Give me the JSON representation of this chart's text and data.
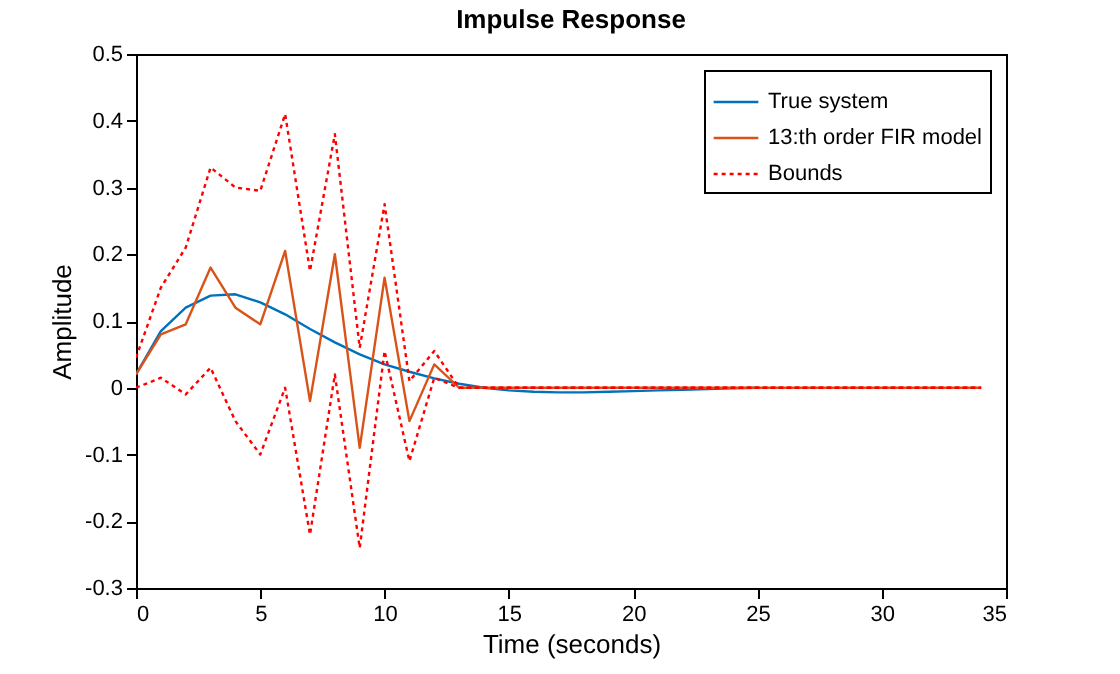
{
  "chart_data": {
    "type": "line",
    "title": "Impulse Response",
    "xlabel": "Time (seconds)",
    "ylabel": "Amplitude",
    "xlim": [
      0,
      35
    ],
    "xticks": [
      0,
      5,
      10,
      15,
      20,
      25,
      30,
      35
    ],
    "ylim": [
      -0.3,
      0.5
    ],
    "yticks": [
      -0.3,
      -0.2,
      -0.1,
      0,
      0.1,
      0.2,
      0.3,
      0.4,
      0.5
    ],
    "legend": "top right",
    "grid": false,
    "series": [
      {
        "name": "True system",
        "color": "#0072bd",
        "line_style": "solid",
        "x": [
          0,
          1,
          2,
          3,
          4,
          5,
          6,
          7,
          8,
          9,
          10,
          11,
          12,
          13,
          14,
          15,
          16,
          17,
          18,
          19,
          20,
          21,
          22,
          23,
          24,
          25
        ],
        "values": [
          0.02,
          0.085,
          0.12,
          0.138,
          0.14,
          0.128,
          0.11,
          0.088,
          0.068,
          0.05,
          0.035,
          0.024,
          0.014,
          0.006,
          0,
          -0.004,
          -0.006,
          -0.007,
          -0.007,
          -0.006,
          -0.005,
          -0.004,
          -0.003,
          -0.002,
          -0.001,
          0
        ]
      },
      {
        "name": "13:th order FIR model",
        "color": "#d95319",
        "line_style": "solid",
        "x": [
          0,
          1,
          2,
          3,
          4,
          5,
          6,
          7,
          8,
          9,
          10,
          11,
          12,
          13,
          14,
          20,
          25,
          30,
          34
        ],
        "values": [
          0.02,
          0.08,
          0.095,
          0.18,
          0.12,
          0.095,
          0.205,
          -0.02,
          0.2,
          -0.09,
          0.165,
          -0.05,
          0.035,
          0,
          0,
          0,
          0,
          0,
          0
        ]
      },
      {
        "name": "Bounds",
        "color": "#ff0000",
        "line_style": "dotted",
        "x": [
          0,
          1,
          2,
          3,
          4,
          5,
          6,
          7,
          8,
          9,
          10,
          11,
          12,
          13,
          14,
          20,
          25,
          30,
          34
        ],
        "values": [
          0.045,
          0.15,
          0.21,
          0.33,
          0.3,
          0.295,
          0.41,
          0.175,
          0.38,
          0.06,
          0.275,
          0.01,
          0.055,
          0,
          0,
          0,
          0,
          0,
          0
        ]
      },
      {
        "name": null,
        "color": "#ff0000",
        "line_style": "dotted",
        "x": [
          0,
          1,
          2,
          3,
          4,
          5,
          6,
          7,
          8,
          9,
          10,
          11,
          12,
          13,
          14,
          20,
          25,
          30,
          34
        ],
        "values": [
          0,
          0.015,
          -0.01,
          0.03,
          -0.05,
          -0.1,
          0,
          -0.22,
          0.02,
          -0.24,
          0.055,
          -0.11,
          0.015,
          0,
          0,
          0,
          0,
          0,
          0
        ]
      }
    ]
  }
}
